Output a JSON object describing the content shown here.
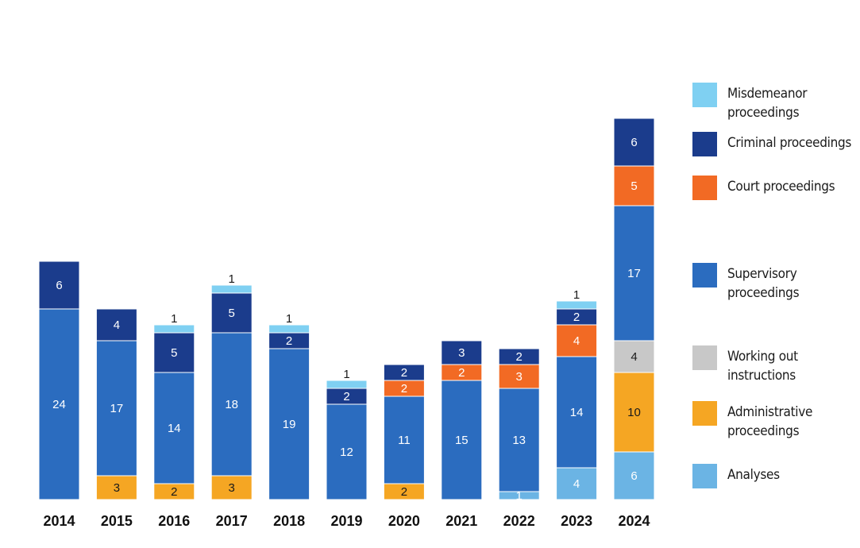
{
  "chart_data": {
    "type": "bar",
    "stacked": true,
    "categories": [
      "2014",
      "2015",
      "2016",
      "2017",
      "2018",
      "2019",
      "2020",
      "2021",
      "2022",
      "2023",
      "2024"
    ],
    "ylim": [
      0,
      48
    ],
    "grid": false,
    "legend_position": "right",
    "series": [
      {
        "name": "Analyses",
        "color": "#6bb4e4",
        "values": [
          0,
          0,
          0,
          0,
          0,
          0,
          0,
          0,
          1,
          4,
          6
        ]
      },
      {
        "name": "Administrative proceedings",
        "color": "#f5a623",
        "values": [
          0,
          3,
          2,
          3,
          0,
          0,
          2,
          0,
          0,
          0,
          10
        ]
      },
      {
        "name": "Working out instructions",
        "color": "#c8c8c8",
        "values": [
          0,
          0,
          0,
          0,
          0,
          0,
          0,
          0,
          0,
          0,
          4
        ]
      },
      {
        "name": "Supervisory proceedings",
        "color": "#2b6cbf",
        "values": [
          24,
          17,
          14,
          18,
          19,
          12,
          11,
          15,
          13,
          14,
          17
        ]
      },
      {
        "name": "Court proceedings",
        "color": "#f26a24",
        "values": [
          0,
          0,
          0,
          0,
          0,
          0,
          2,
          2,
          3,
          4,
          5
        ]
      },
      {
        "name": "Criminal proceedings",
        "color": "#1b3c8c",
        "values": [
          6,
          4,
          5,
          5,
          2,
          2,
          2,
          3,
          2,
          2,
          6
        ]
      },
      {
        "name": "Misdemeanor proceedings",
        "color": "#7fd0f2",
        "values": [
          0,
          0,
          1,
          1,
          1,
          1,
          0,
          0,
          0,
          1,
          0
        ]
      }
    ]
  },
  "legend": [
    {
      "label": "Misdemeanor proceedings",
      "color": "#7fd0f2"
    },
    {
      "label": "Criminal proceedings",
      "color": "#1b3c8c"
    },
    {
      "label": "Court proceedings",
      "color": "#f26a24"
    },
    {
      "label": "Supervisory proceedings",
      "color": "#2b6cbf"
    },
    {
      "label": "Working out instructions",
      "color": "#c8c8c8"
    },
    {
      "label": "Administrative proceedings",
      "color": "#f5a623"
    },
    {
      "label": "Analyses",
      "color": "#6bb4e4"
    }
  ]
}
